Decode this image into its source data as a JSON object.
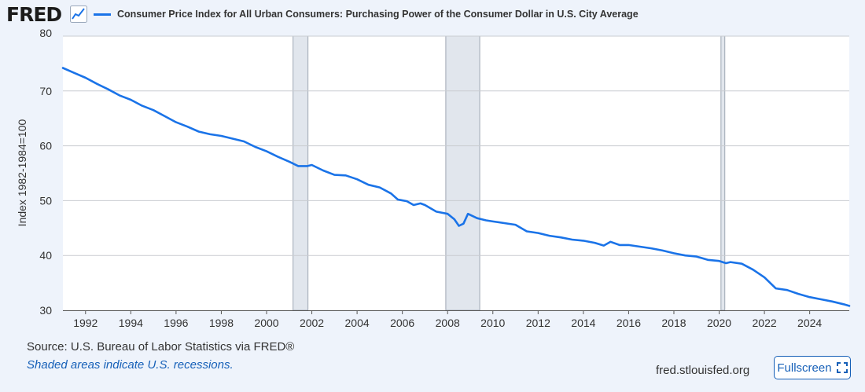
{
  "header": {
    "logo_text": "FRED",
    "series_title": "Consumer Price Index for All Urban Consumers: Purchasing Power of the Consumer Dollar in U.S. City Average"
  },
  "footer": {
    "source": "Source: U.S. Bureau of Labor Statistics via FRED®",
    "recession_note": "Shaded areas indicate U.S. recessions.",
    "site": "fred.stlouisfed.org",
    "fullscreen_label": "Fullscreen"
  },
  "colors": {
    "line": "#1a73e8",
    "recession": "#e1e6ed",
    "background": "#eef3fb",
    "accent": "#1660b8"
  },
  "chart_data": {
    "type": "line",
    "title": "Consumer Price Index for All Urban Consumers: Purchasing Power of the Consumer Dollar in U.S. City Average",
    "xlabel": "",
    "ylabel": "Index 1982-1984=100",
    "xlim": [
      1991.0,
      2025.75
    ],
    "ylim": [
      30,
      80
    ],
    "x_ticks": [
      1992,
      1994,
      1996,
      1998,
      2000,
      2002,
      2004,
      2006,
      2008,
      2010,
      2012,
      2014,
      2016,
      2018,
      2020,
      2022,
      2024
    ],
    "y_ticks": [
      30,
      40,
      50,
      60,
      70,
      80
    ],
    "grid": true,
    "recessions": [
      [
        2001.17,
        2001.83
      ],
      [
        2007.92,
        2009.42
      ],
      [
        2020.08,
        2020.25
      ]
    ],
    "series": [
      {
        "name": "Purchasing Power of the Consumer Dollar",
        "x": [
          1991.0,
          1991.5,
          1992.0,
          1992.5,
          1993.0,
          1993.5,
          1994.0,
          1994.5,
          1995.0,
          1995.5,
          1996.0,
          1996.5,
          1997.0,
          1997.5,
          1998.0,
          1998.5,
          1999.0,
          1999.5,
          2000.0,
          2000.5,
          2001.0,
          2001.4,
          2001.8,
          2002.0,
          2002.5,
          2003.0,
          2003.5,
          2004.0,
          2004.5,
          2005.0,
          2005.5,
          2005.8,
          2006.2,
          2006.5,
          2006.8,
          2007.0,
          2007.5,
          2008.0,
          2008.3,
          2008.5,
          2008.7,
          2008.9,
          2009.3,
          2009.7,
          2010.0,
          2010.5,
          2011.0,
          2011.5,
          2012.0,
          2012.5,
          2013.0,
          2013.5,
          2014.0,
          2014.5,
          2014.9,
          2015.2,
          2015.6,
          2016.0,
          2016.5,
          2017.0,
          2017.5,
          2018.0,
          2018.5,
          2019.0,
          2019.5,
          2020.0,
          2020.3,
          2020.5,
          2021.0,
          2021.5,
          2022.0,
          2022.5,
          2023.0,
          2023.5,
          2024.0,
          2024.5,
          2025.0,
          2025.5,
          2025.75
        ],
        "y": [
          74.2,
          73.3,
          72.4,
          71.3,
          70.3,
          69.2,
          68.4,
          67.3,
          66.5,
          65.4,
          64.3,
          63.5,
          62.6,
          62.1,
          61.8,
          61.3,
          60.8,
          59.8,
          59.0,
          58.0,
          57.1,
          56.3,
          56.3,
          56.5,
          55.5,
          54.7,
          54.6,
          53.9,
          52.9,
          52.4,
          51.3,
          50.2,
          49.9,
          49.2,
          49.5,
          49.2,
          48.0,
          47.6,
          46.6,
          45.4,
          45.8,
          47.6,
          46.8,
          46.4,
          46.2,
          45.9,
          45.6,
          44.4,
          44.1,
          43.6,
          43.3,
          42.9,
          42.7,
          42.3,
          41.8,
          42.5,
          41.9,
          41.9,
          41.6,
          41.3,
          40.9,
          40.4,
          40.0,
          39.8,
          39.2,
          39.0,
          38.6,
          38.8,
          38.5,
          37.4,
          36.0,
          34.0,
          33.7,
          33.0,
          32.4,
          32.0,
          31.6,
          31.1,
          30.8
        ]
      }
    ]
  }
}
